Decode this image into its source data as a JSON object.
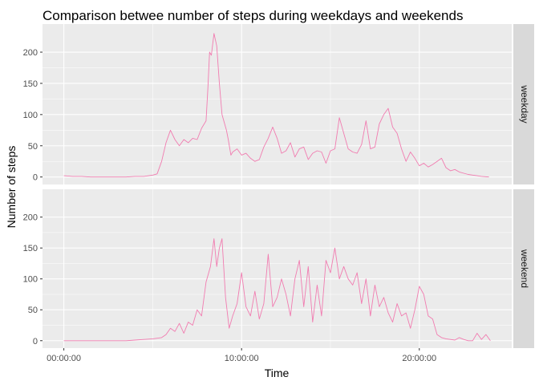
{
  "chart_data": {
    "type": "line",
    "title": "Comparison betwee number of steps during weekdays and weekends",
    "xlabel": "Time",
    "ylabel": "Number of steps",
    "x_ticks": [
      "00:00:00",
      "10:00:00",
      "20:00:00"
    ],
    "x_tick_hours": [
      0,
      10,
      20
    ],
    "y_ticks": [
      0,
      50,
      100,
      150,
      200
    ],
    "xlim_hours": [
      -1.2,
      25.2
    ],
    "ylim": [
      -12,
      245
    ],
    "line_color": "#f17cb0",
    "panel_bg": "#ebebeb",
    "strip_bg": "#d9d9d9",
    "grid": true,
    "facet": "rows",
    "panels": [
      {
        "label": "weekday",
        "series": [
          {
            "x_hours": [
              0.0,
              0.5,
              1.0,
              1.5,
              2.0,
              2.5,
              3.0,
              3.5,
              4.0,
              4.5,
              5.0,
              5.25,
              5.5,
              5.75,
              6.0,
              6.25,
              6.5,
              6.75,
              7.0,
              7.25,
              7.5,
              7.75,
              8.0,
              8.1,
              8.2,
              8.3,
              8.45,
              8.6,
              8.75,
              8.9,
              9.0,
              9.15,
              9.25,
              9.4,
              9.5,
              9.75,
              10.0,
              10.25,
              10.5,
              10.75,
              11.0,
              11.25,
              11.5,
              11.75,
              12.0,
              12.25,
              12.5,
              12.75,
              13.0,
              13.25,
              13.5,
              13.75,
              14.0,
              14.25,
              14.5,
              14.75,
              15.0,
              15.25,
              15.5,
              15.75,
              16.0,
              16.25,
              16.5,
              16.75,
              17.0,
              17.25,
              17.5,
              17.75,
              18.0,
              18.25,
              18.5,
              18.75,
              19.0,
              19.25,
              19.5,
              19.75,
              20.0,
              20.25,
              20.5,
              20.75,
              21.0,
              21.25,
              21.5,
              21.75,
              22.0,
              22.25,
              22.5,
              22.75,
              23.0,
              23.25,
              23.5,
              23.92
            ],
            "values": [
              2,
              1,
              1,
              0,
              0,
              0,
              0,
              0,
              1,
              1,
              3,
              5,
              25,
              55,
              75,
              60,
              50,
              60,
              55,
              62,
              60,
              78,
              90,
              140,
              200,
              195,
              230,
              210,
              150,
              100,
              90,
              75,
              60,
              35,
              40,
              45,
              35,
              38,
              30,
              25,
              28,
              48,
              62,
              80,
              62,
              38,
              42,
              55,
              32,
              45,
              48,
              28,
              38,
              42,
              40,
              22,
              42,
              45,
              95,
              70,
              45,
              40,
              38,
              52,
              90,
              45,
              48,
              85,
              100,
              110,
              80,
              70,
              45,
              25,
              40,
              30,
              18,
              22,
              16,
              20,
              25,
              30,
              15,
              10,
              12,
              8,
              6,
              4,
              3,
              2,
              1,
              0
            ]
          }
        ]
      },
      {
        "label": "weekend",
        "series": [
          {
            "x_hours": [
              0.0,
              0.5,
              1.0,
              1.5,
              2.0,
              2.5,
              3.0,
              3.5,
              4.0,
              4.5,
              5.0,
              5.5,
              5.75,
              6.0,
              6.25,
              6.5,
              6.75,
              7.0,
              7.25,
              7.5,
              7.75,
              8.0,
              8.25,
              8.45,
              8.6,
              8.75,
              8.9,
              9.1,
              9.3,
              9.5,
              9.75,
              10.0,
              10.25,
              10.5,
              10.75,
              11.0,
              11.25,
              11.5,
              11.75,
              12.0,
              12.25,
              12.5,
              12.75,
              13.0,
              13.25,
              13.5,
              13.75,
              14.0,
              14.25,
              14.5,
              14.75,
              15.0,
              15.25,
              15.5,
              15.75,
              16.0,
              16.25,
              16.5,
              16.75,
              17.0,
              17.25,
              17.5,
              17.75,
              18.0,
              18.25,
              18.5,
              18.75,
              19.0,
              19.25,
              19.5,
              19.75,
              20.0,
              20.25,
              20.5,
              20.75,
              21.0,
              21.25,
              21.5,
              21.75,
              22.0,
              22.25,
              22.5,
              22.75,
              23.0,
              23.25,
              23.5,
              23.75,
              24.0
            ],
            "values": [
              0,
              0,
              0,
              0,
              0,
              0,
              0,
              0,
              1,
              2,
              3,
              5,
              10,
              20,
              15,
              28,
              12,
              30,
              25,
              50,
              40,
              95,
              120,
              165,
              120,
              150,
              165,
              70,
              20,
              40,
              60,
              110,
              55,
              40,
              80,
              35,
              60,
              140,
              55,
              70,
              100,
              75,
              40,
              100,
              130,
              55,
              120,
              30,
              90,
              40,
              130,
              110,
              150,
              100,
              120,
              100,
              90,
              110,
              60,
              100,
              40,
              90,
              55,
              70,
              45,
              30,
              60,
              40,
              45,
              20,
              50,
              88,
              75,
              40,
              35,
              10,
              5,
              3,
              2,
              1,
              5,
              2,
              0,
              0,
              12,
              2,
              10,
              0
            ]
          }
        ]
      }
    ]
  }
}
